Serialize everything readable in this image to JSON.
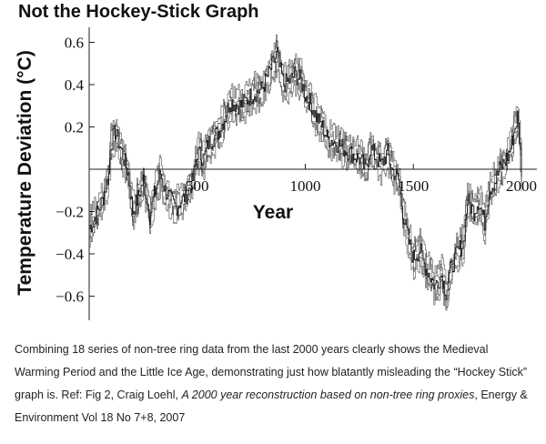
{
  "title": "Not the Hockey-Stick Graph",
  "caption": {
    "part1": "Combining 18 series of non-tree ring data from the last 2000 years clearly shows the Medieval Warming Period and the Little Ice Age, demonstrating just how blatantly misleading the “Hockey Stick” graph is. Ref: Fig 2, Craig Loehl, ",
    "italic": "A 2000 year reconstruction based on non-tree ring proxies",
    "part2": ", Energy & Environment Vol 18 No 7+8, 2007"
  },
  "chart_data": {
    "type": "line",
    "title": "Not the Hockey-Stick Graph",
    "xlabel": "Year",
    "ylabel": "Temperature Deviation (°C)",
    "xlim": [
      0,
      2000
    ],
    "ylim": [
      -0.7,
      0.7
    ],
    "x_ticks": [
      500,
      1000,
      1500,
      2000
    ],
    "x_tick_labels": [
      "500",
      "1000",
      "1500",
      "2000"
    ],
    "y_ticks": [
      -0.6,
      -0.4,
      -0.2,
      0.2,
      0.4,
      0.6
    ],
    "y_tick_labels": [
      "−0.6",
      "−0.4",
      "−0.2",
      "0.2",
      "0.4",
      "0.6"
    ],
    "series_color": "#111111",
    "series": [
      {
        "x": [
          0,
          30,
          60,
          90,
          100,
          120,
          150,
          180,
          200,
          230,
          250,
          280,
          300,
          330,
          350,
          380,
          400,
          450,
          480,
          500,
          530,
          550,
          600,
          630,
          650,
          700,
          750,
          800,
          830,
          850,
          870,
          880,
          900,
          930,
          950,
          980,
          1000,
          1030,
          1050,
          1080,
          1100,
          1150,
          1200,
          1250,
          1280,
          1300,
          1330,
          1350,
          1380,
          1400,
          1430,
          1450,
          1480,
          1500,
          1530,
          1550,
          1600,
          1630,
          1650,
          1670,
          1700,
          1730,
          1750,
          1780,
          1800,
          1830,
          1850,
          1880,
          1900,
          1930,
          1950,
          1970,
          1980,
          1990,
          2000
        ],
        "y": [
          -0.28,
          -0.22,
          -0.15,
          -0.02,
          0.12,
          0.18,
          0.08,
          -0.02,
          -0.2,
          -0.12,
          -0.05,
          -0.22,
          -0.12,
          -0.02,
          -0.1,
          -0.15,
          -0.18,
          -0.12,
          -0.05,
          0.08,
          0.05,
          0.12,
          0.18,
          0.25,
          0.32,
          0.3,
          0.35,
          0.38,
          0.45,
          0.5,
          0.55,
          0.48,
          0.4,
          0.42,
          0.45,
          0.42,
          0.35,
          0.3,
          0.25,
          0.2,
          0.15,
          0.12,
          0.08,
          0.05,
          0.0,
          0.1,
          0.05,
          0.02,
          0.08,
          0.0,
          -0.05,
          -0.2,
          -0.35,
          -0.42,
          -0.38,
          -0.45,
          -0.55,
          -0.5,
          -0.58,
          -0.48,
          -0.4,
          -0.35,
          -0.15,
          -0.2,
          -0.15,
          -0.25,
          -0.1,
          -0.05,
          0.0,
          0.05,
          0.1,
          0.2,
          0.25,
          0.15,
          0.0
        ]
      }
    ]
  }
}
